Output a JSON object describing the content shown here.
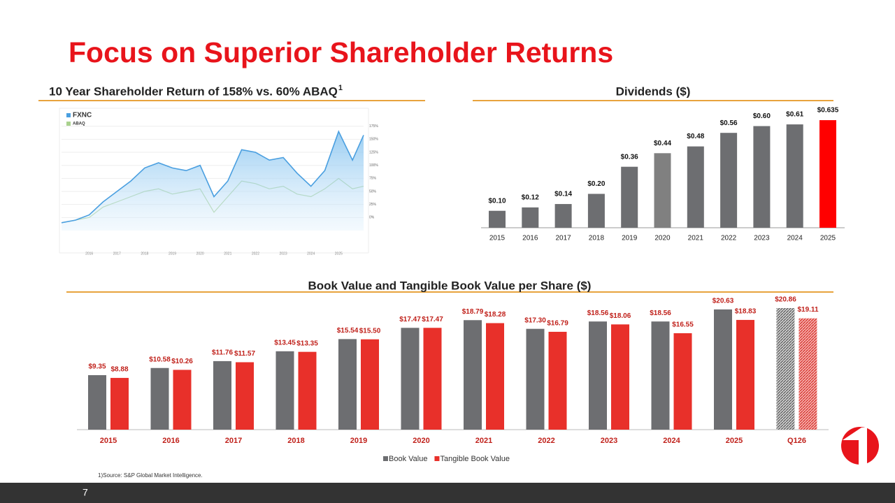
{
  "title": "Focus on Superior Shareholder Returns",
  "footnote": "1)Source: S&P Global Market Intelligence.",
  "page_number": "7",
  "chart_data": [
    {
      "type": "line",
      "title": "10 Year Shareholder Return of 158% vs. 60% ABAQ",
      "title_note": "1",
      "x": [
        2015.0,
        2015.5,
        2016.0,
        2016.5,
        2017.0,
        2017.5,
        2018.0,
        2018.5,
        2019.0,
        2019.5,
        2020.0,
        2020.5,
        2021.0,
        2021.5,
        2022.0,
        2022.5,
        2023.0,
        2023.5,
        2024.0,
        2024.5,
        2025.0,
        2025.5,
        2025.9
      ],
      "series": [
        {
          "name": "FXNC",
          "color": "#4a9fe0",
          "values": [
            -10,
            -5,
            5,
            30,
            50,
            70,
            95,
            105,
            95,
            90,
            100,
            40,
            70,
            130,
            125,
            110,
            115,
            85,
            60,
            90,
            165,
            110,
            158
          ]
        },
        {
          "name": "ABAQ",
          "color": "#a9d18e",
          "values": [
            -10,
            -5,
            0,
            20,
            30,
            40,
            50,
            55,
            45,
            50,
            55,
            10,
            40,
            70,
            65,
            55,
            60,
            45,
            40,
            55,
            75,
            55,
            60
          ]
        }
      ],
      "xlim": [
        2015,
        2025.9
      ],
      "xticks": [
        2016,
        2017,
        2018,
        2019,
        2020,
        2021,
        2022,
        2023,
        2024,
        2025
      ],
      "ylim": [
        -25,
        180
      ],
      "yticks": [
        {
          "value": 0,
          "label": "0%"
        },
        {
          "value": 25,
          "label": "25%"
        },
        {
          "value": 50,
          "label": "50%"
        },
        {
          "value": 75,
          "label": "75%"
        },
        {
          "value": 100,
          "label": "100%"
        },
        {
          "value": 125,
          "label": "125%"
        },
        {
          "value": 150,
          "label": "150%"
        },
        {
          "value": 175,
          "label": "175%"
        }
      ]
    },
    {
      "type": "bar",
      "title": "Dividends ($)",
      "categories": [
        "2015",
        "2016",
        "2017",
        "2018",
        "2019",
        "2020",
        "2021",
        "2022",
        "2023",
        "2024",
        "2025"
      ],
      "values": [
        0.1,
        0.12,
        0.14,
        0.2,
        0.36,
        0.44,
        0.48,
        0.56,
        0.6,
        0.61,
        0.635
      ],
      "value_labels": [
        "$0.10",
        "$0.12",
        "$0.14",
        "$0.20",
        "$0.36",
        "$0.44",
        "$0.48",
        "$0.56",
        "$0.60",
        "$0.61",
        "$0.635"
      ],
      "colors": [
        "#6d6e71",
        "#6d6e71",
        "#6d6e71",
        "#6d6e71",
        "#6d6e71",
        "#808080",
        "#6d6e71",
        "#6d6e71",
        "#6d6e71",
        "#6d6e71",
        "#ff0000"
      ]
    },
    {
      "type": "grouped_bar",
      "title": "Book Value and Tangible Book Value per Share ($)",
      "categories": [
        "2015",
        "2016",
        "2017",
        "2018",
        "2019",
        "2020",
        "2021",
        "2022",
        "2023",
        "2024",
        "2025",
        "Q126"
      ],
      "hatch_last_category": true,
      "series": [
        {
          "name": "Book Value",
          "color": "#6d6e71",
          "values": [
            9.35,
            10.58,
            11.76,
            13.45,
            15.54,
            17.47,
            18.79,
            17.3,
            18.56,
            18.56,
            20.63,
            20.86
          ],
          "value_labels": [
            "$9.35",
            "$10.58",
            "$11.76",
            "$13.45",
            "$15.54",
            "$17.47",
            "$18.79",
            "$17.30",
            "$18.56",
            "$18.56",
            "$20.63",
            "$20.86"
          ]
        },
        {
          "name": "Tangible Book Value",
          "color": "#e8302a",
          "values": [
            8.88,
            10.26,
            11.57,
            13.35,
            15.5,
            17.47,
            18.28,
            16.79,
            18.06,
            16.55,
            18.83,
            19.11
          ],
          "value_labels": [
            "$8.88",
            "$10.26",
            "$11.57",
            "$13.35",
            "$15.50",
            "$17.47",
            "$18.28",
            "$16.79",
            "$18.06",
            "$16.55",
            "$18.83",
            "$19.11"
          ]
        }
      ]
    }
  ]
}
